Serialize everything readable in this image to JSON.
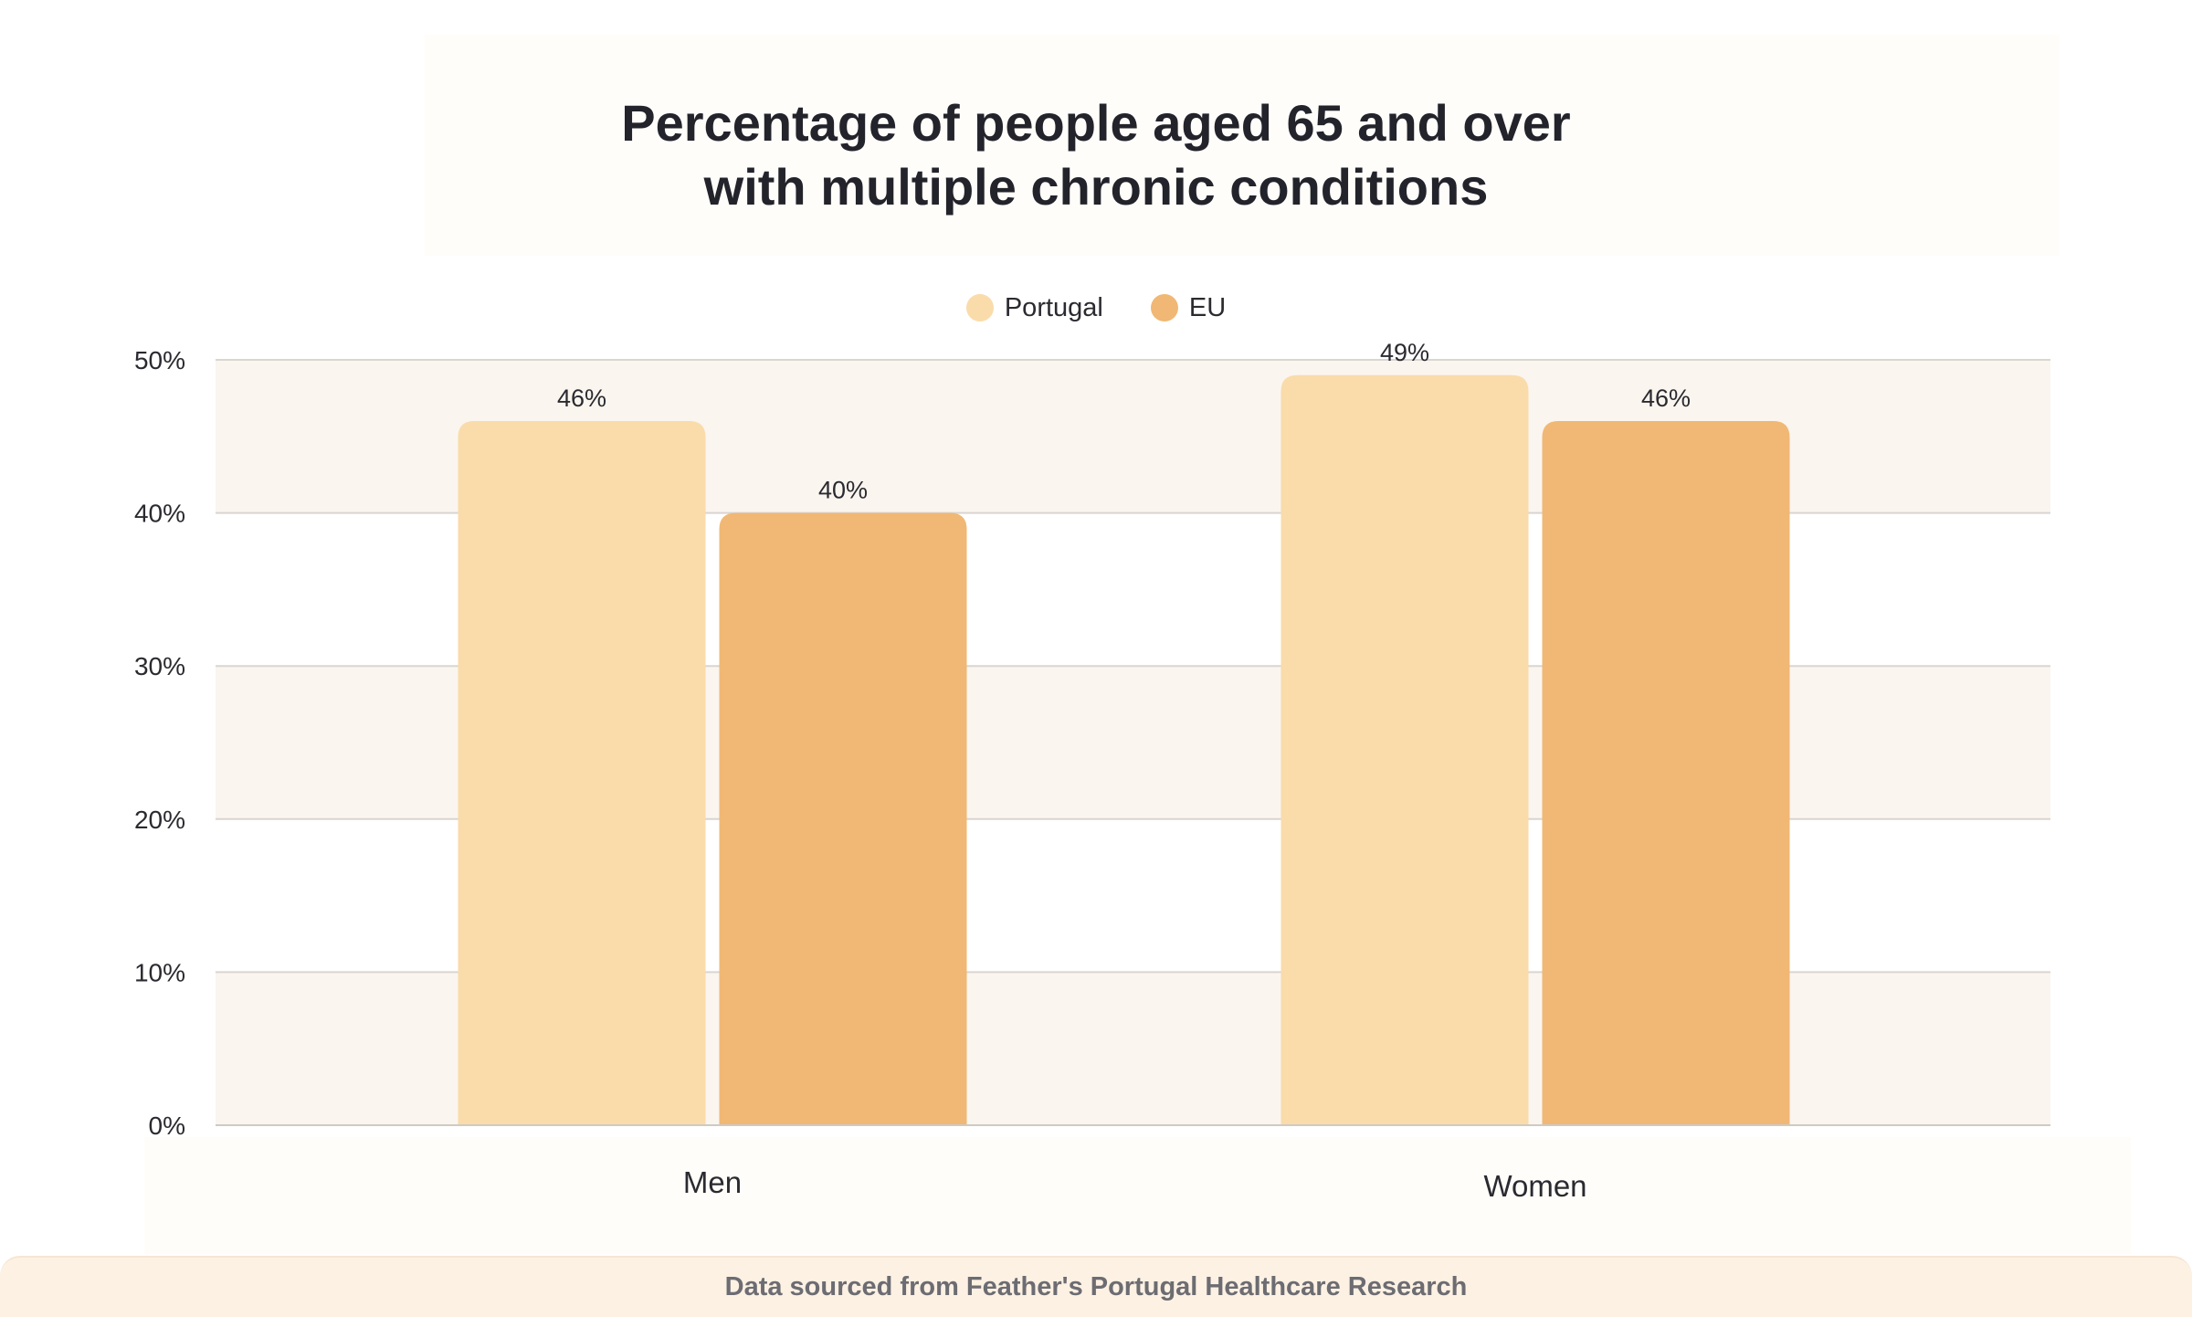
{
  "colors": {
    "portugal": "#fadbaa",
    "eu": "#f0b874",
    "band": "#faf5ef",
    "grid": "#d9d5d0",
    "text": "#2a2a30"
  },
  "chart_data": {
    "type": "bar",
    "title_lines": [
      "Percentage of people aged 65 and over",
      "with multiple chronic conditions"
    ],
    "categories": [
      "Men",
      "Women"
    ],
    "series": [
      {
        "name": "Portugal",
        "values": [
          46,
          49
        ],
        "labels": [
          "46%",
          "49%"
        ]
      },
      {
        "name": "EU",
        "values": [
          40,
          46
        ],
        "labels": [
          "40%",
          "46%"
        ]
      }
    ],
    "yticks": [
      {
        "value": 0,
        "label": "0%"
      },
      {
        "value": 10,
        "label": "10%"
      },
      {
        "value": 20,
        "label": "20%"
      },
      {
        "value": 30,
        "label": "30%"
      },
      {
        "value": 40,
        "label": "40%"
      },
      {
        "value": 50,
        "label": "50%"
      }
    ],
    "ylim": [
      0,
      50
    ],
    "legend_position": "top-center",
    "grid": true
  },
  "footer": {
    "source_text": "Data sourced from Feather's Portugal Healthcare Research"
  }
}
